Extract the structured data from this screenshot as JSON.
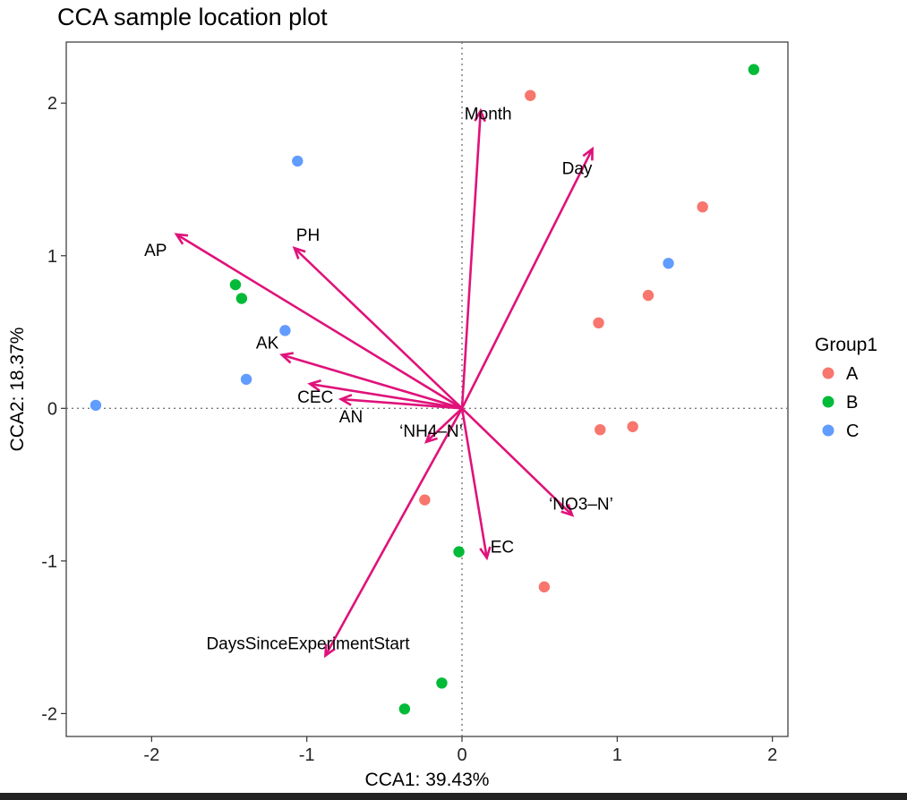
{
  "chart_data": {
    "type": "scatter",
    "title": "CCA sample location plot",
    "xlabel": "CCA1: 39.43%",
    "ylabel": "CCA2: 18.37%",
    "xlim": [
      -2.55,
      2.1
    ],
    "ylim": [
      -2.15,
      2.4
    ],
    "x_ticks": [
      -2,
      -1,
      0,
      1,
      2
    ],
    "y_ticks": [
      -2,
      -1,
      0,
      1,
      2
    ],
    "grid": false,
    "legend_position": "right",
    "legend": {
      "title": "Group1",
      "entries": [
        {
          "label": "A",
          "color": "#F8766D"
        },
        {
          "label": "B",
          "color": "#00BA38"
        },
        {
          "label": "C",
          "color": "#619CFF"
        }
      ]
    },
    "series": [
      {
        "name": "A",
        "color": "#F8766D",
        "points": [
          [
            0.44,
            2.05
          ],
          [
            1.55,
            1.32
          ],
          [
            1.2,
            0.74
          ],
          [
            0.88,
            0.56
          ],
          [
            0.89,
            -0.14
          ],
          [
            1.1,
            -0.12
          ],
          [
            -0.24,
            -0.6
          ],
          [
            0.53,
            -1.17
          ]
        ]
      },
      {
        "name": "B",
        "color": "#00BA38",
        "points": [
          [
            1.88,
            2.22
          ],
          [
            -1.46,
            0.81
          ],
          [
            -1.42,
            0.72
          ],
          [
            -0.02,
            -0.94
          ],
          [
            -0.13,
            -1.8
          ],
          [
            -0.37,
            -1.97
          ]
        ]
      },
      {
        "name": "C",
        "color": "#619CFF",
        "points": [
          [
            -1.06,
            1.62
          ],
          [
            1.33,
            0.95
          ],
          [
            -1.14,
            0.51
          ],
          [
            -1.39,
            0.19
          ],
          [
            -2.36,
            0.02
          ]
        ]
      }
    ],
    "arrows": {
      "color": "#E0127A",
      "vectors": [
        {
          "label": "Month",
          "x": 0.12,
          "y": 1.95
        },
        {
          "label": "Day",
          "x": 0.84,
          "y": 1.7
        },
        {
          "label": "PH",
          "x": -1.08,
          "y": 1.05
        },
        {
          "label": "AP",
          "x": -1.84,
          "y": 1.14
        },
        {
          "label": "AK",
          "x": -1.16,
          "y": 0.35
        },
        {
          "label": "CEC",
          "x": -0.98,
          "y": 0.16
        },
        {
          "label": "AN",
          "x": -0.78,
          "y": 0.06
        },
        {
          "label": "‘NH4–N’",
          "x": -0.23,
          "y": -0.22
        },
        {
          "label": "‘NO3–N’",
          "x": 0.71,
          "y": -0.7
        },
        {
          "label": "EC",
          "x": 0.16,
          "y": -0.98
        },
        {
          "label": "DaysSinceExperimentStart",
          "x": -0.88,
          "y": -1.62
        }
      ]
    }
  }
}
